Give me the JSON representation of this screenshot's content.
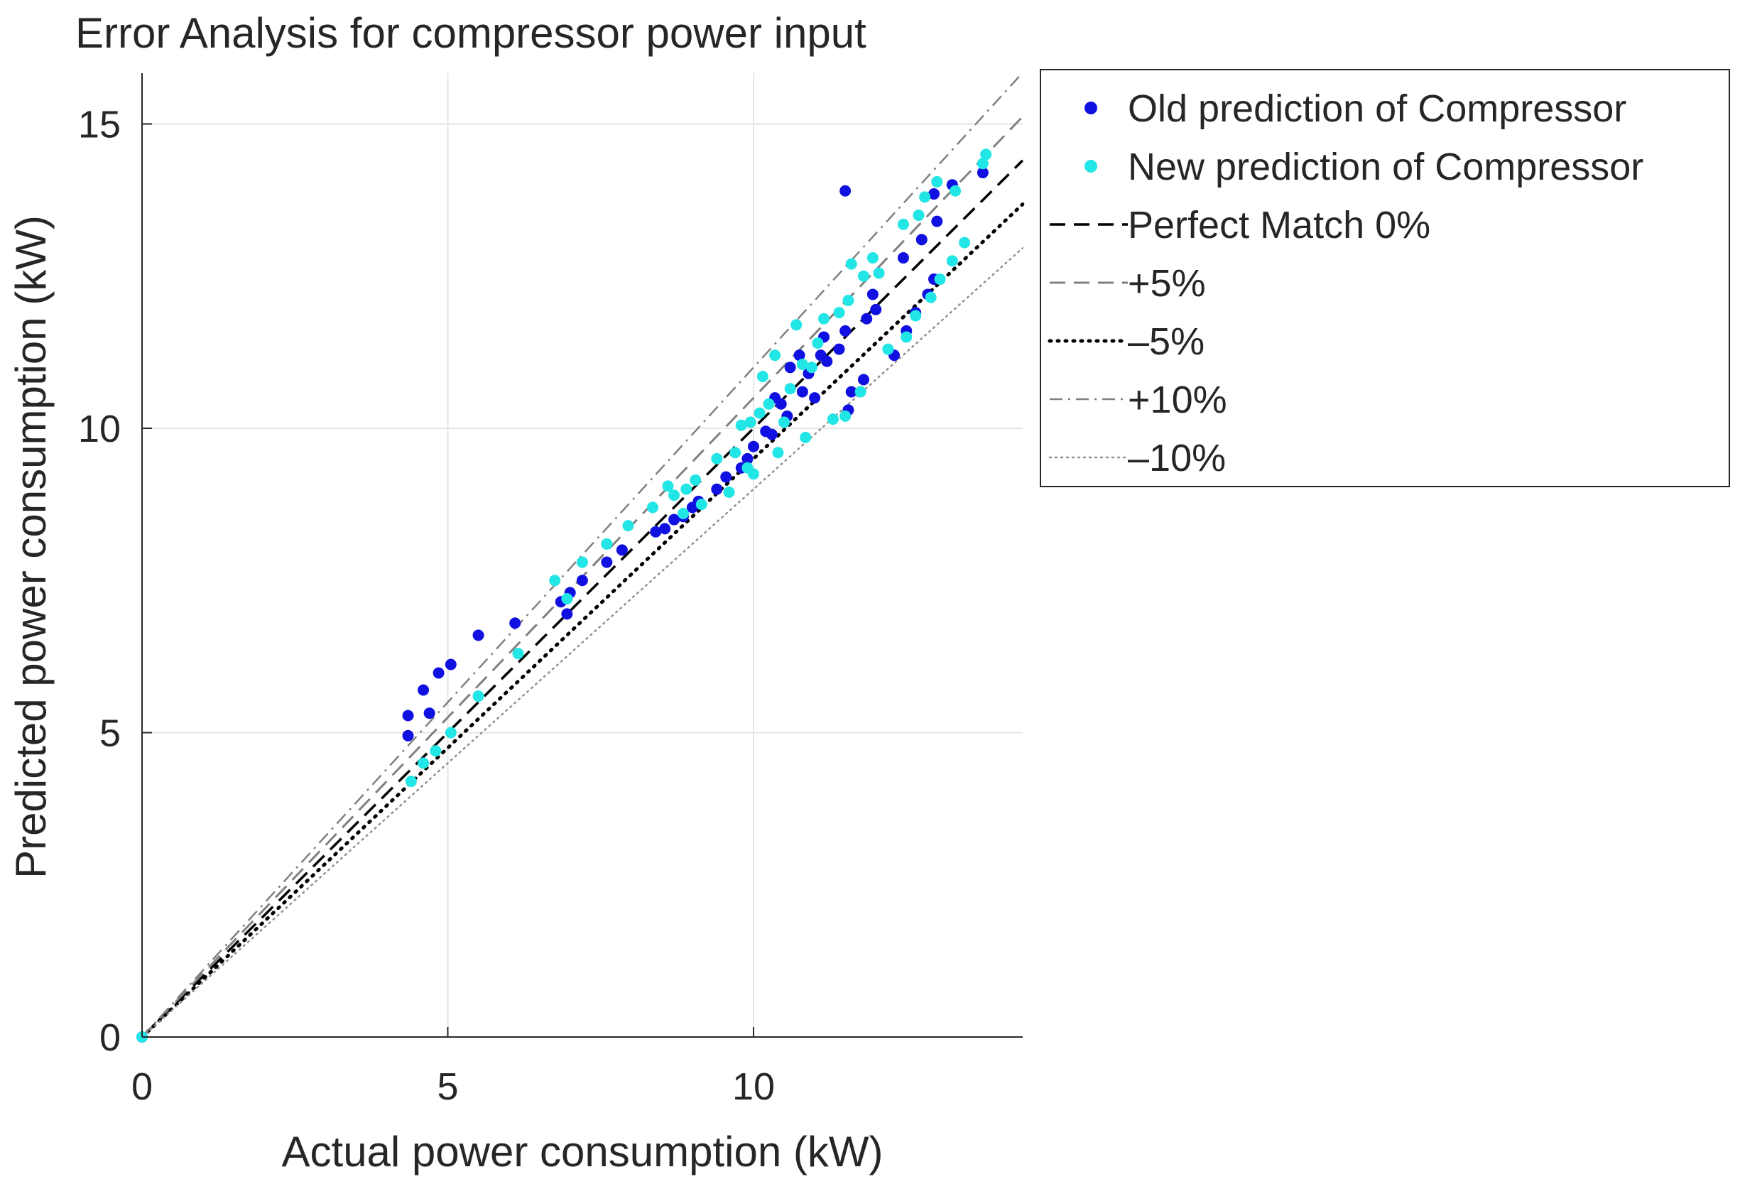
{
  "chart_data": {
    "type": "scatter",
    "title": "Error Analysis for compressor power input",
    "xlabel": "Actual power consumption (kW)",
    "ylabel": "Predicted power consumption (kW)",
    "xlim": [
      0,
      14.4
    ],
    "ylim": [
      0,
      15.8
    ],
    "xticks": [
      "0",
      "5",
      "10"
    ],
    "yticks": [
      "0",
      "5",
      "10",
      "15"
    ],
    "grid": true,
    "legend_position": "outside-top-right",
    "series": [
      {
        "name": "Old prediction of Compressor",
        "color": "#1010e0",
        "marker": "dot",
        "points": [
          [
            0,
            0
          ],
          [
            4.35,
            4.95
          ],
          [
            4.35,
            5.28
          ],
          [
            4.6,
            5.7
          ],
          [
            4.7,
            5.32
          ],
          [
            4.85,
            5.98
          ],
          [
            5.05,
            6.12
          ],
          [
            5.5,
            6.6
          ],
          [
            6.1,
            6.8
          ],
          [
            6.85,
            7.15
          ],
          [
            6.95,
            6.95
          ],
          [
            7.0,
            7.3
          ],
          [
            7.2,
            7.5
          ],
          [
            7.6,
            7.8
          ],
          [
            7.85,
            8.0
          ],
          [
            8.4,
            8.3
          ],
          [
            8.55,
            8.35
          ],
          [
            8.7,
            8.5
          ],
          [
            8.85,
            8.55
          ],
          [
            9.0,
            8.7
          ],
          [
            9.1,
            8.8
          ],
          [
            9.4,
            9.0
          ],
          [
            9.55,
            9.2
          ],
          [
            9.8,
            9.35
          ],
          [
            9.9,
            9.5
          ],
          [
            10.0,
            9.7
          ],
          [
            10.2,
            9.95
          ],
          [
            10.3,
            9.9
          ],
          [
            10.35,
            10.5
          ],
          [
            10.45,
            10.4
          ],
          [
            10.55,
            10.2
          ],
          [
            10.6,
            11.0
          ],
          [
            10.75,
            11.2
          ],
          [
            10.8,
            10.6
          ],
          [
            10.9,
            10.9
          ],
          [
            11.0,
            10.5
          ],
          [
            11.1,
            11.2
          ],
          [
            11.15,
            11.5
          ],
          [
            11.2,
            11.1
          ],
          [
            11.4,
            11.3
          ],
          [
            11.5,
            11.6
          ],
          [
            11.55,
            10.3
          ],
          [
            11.6,
            10.6
          ],
          [
            11.8,
            10.8
          ],
          [
            11.85,
            11.8
          ],
          [
            11.95,
            12.2
          ],
          [
            12.0,
            11.95
          ],
          [
            12.3,
            11.2
          ],
          [
            12.45,
            12.8
          ],
          [
            12.5,
            11.6
          ],
          [
            12.65,
            11.9
          ],
          [
            12.75,
            13.1
          ],
          [
            12.85,
            12.2
          ],
          [
            12.95,
            12.45
          ],
          [
            12.95,
            13.85
          ],
          [
            13.0,
            13.4
          ],
          [
            13.25,
            14.0
          ],
          [
            13.75,
            14.2
          ],
          [
            11.5,
            13.9
          ]
        ]
      },
      {
        "name": "New prediction of Compressor",
        "color": "#22e5e5",
        "marker": "dot",
        "points": [
          [
            0,
            0
          ],
          [
            4.4,
            4.2
          ],
          [
            4.6,
            4.5
          ],
          [
            4.8,
            4.7
          ],
          [
            5.05,
            5.0
          ],
          [
            5.5,
            5.6
          ],
          [
            6.15,
            6.3
          ],
          [
            6.75,
            7.5
          ],
          [
            6.95,
            7.2
          ],
          [
            7.2,
            7.8
          ],
          [
            7.6,
            8.1
          ],
          [
            7.95,
            8.4
          ],
          [
            8.35,
            8.7
          ],
          [
            8.6,
            9.05
          ],
          [
            8.7,
            8.9
          ],
          [
            8.85,
            8.6
          ],
          [
            8.9,
            9.0
          ],
          [
            9.05,
            9.15
          ],
          [
            9.15,
            8.75
          ],
          [
            9.4,
            9.5
          ],
          [
            9.6,
            8.95
          ],
          [
            9.7,
            9.6
          ],
          [
            9.8,
            10.05
          ],
          [
            9.9,
            9.35
          ],
          [
            9.95,
            10.1
          ],
          [
            10.0,
            9.25
          ],
          [
            10.1,
            10.25
          ],
          [
            10.15,
            10.85
          ],
          [
            10.25,
            10.4
          ],
          [
            10.35,
            11.2
          ],
          [
            10.4,
            9.6
          ],
          [
            10.5,
            10.1
          ],
          [
            10.6,
            10.65
          ],
          [
            10.7,
            11.7
          ],
          [
            10.8,
            11.05
          ],
          [
            10.85,
            9.85
          ],
          [
            10.95,
            11.0
          ],
          [
            11.05,
            11.4
          ],
          [
            11.15,
            11.8
          ],
          [
            11.3,
            10.15
          ],
          [
            11.4,
            11.9
          ],
          [
            11.5,
            10.2
          ],
          [
            11.55,
            12.1
          ],
          [
            11.6,
            12.7
          ],
          [
            11.75,
            10.6
          ],
          [
            11.8,
            12.5
          ],
          [
            11.95,
            12.8
          ],
          [
            12.05,
            12.55
          ],
          [
            12.2,
            11.3
          ],
          [
            12.45,
            13.35
          ],
          [
            12.5,
            11.5
          ],
          [
            12.65,
            11.85
          ],
          [
            12.7,
            13.5
          ],
          [
            12.8,
            13.8
          ],
          [
            12.9,
            12.15
          ],
          [
            13.0,
            14.05
          ],
          [
            13.05,
            12.45
          ],
          [
            13.25,
            12.75
          ],
          [
            13.45,
            13.05
          ],
          [
            13.3,
            13.9
          ],
          [
            13.8,
            14.5
          ],
          [
            13.75,
            14.35
          ]
        ]
      },
      {
        "name": "Perfect Match 0%",
        "slope": 1.0,
        "style": "dashed-black"
      },
      {
        "name": "+5%",
        "slope": 1.05,
        "style": "dashed-gray"
      },
      {
        "name": "–5%",
        "slope": 0.95,
        "style": "dotted-black"
      },
      {
        "name": "+10%",
        "slope": 1.1,
        "style": "dashdot-gray"
      },
      {
        "name": "–10%",
        "slope": 0.9,
        "style": "dotted-gray"
      }
    ]
  }
}
